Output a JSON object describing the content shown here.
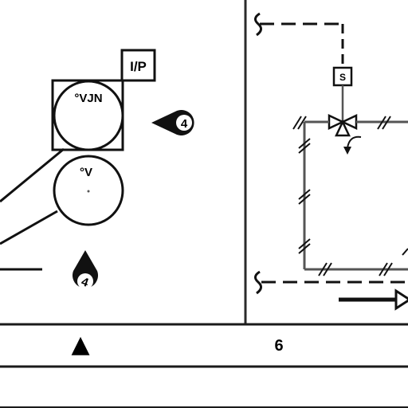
{
  "instruments": {
    "ip_box": {
      "label": "I/P"
    },
    "circle_top": {
      "label": "°VJN"
    },
    "circle_bottom": {
      "label": "°V"
    },
    "tag_right": {
      "label": "4"
    },
    "tag_bottom": {
      "label": "4"
    }
  },
  "valve": {
    "actuator_label": "S"
  },
  "bottom_strip": {
    "marker": "▲",
    "number": "6"
  }
}
